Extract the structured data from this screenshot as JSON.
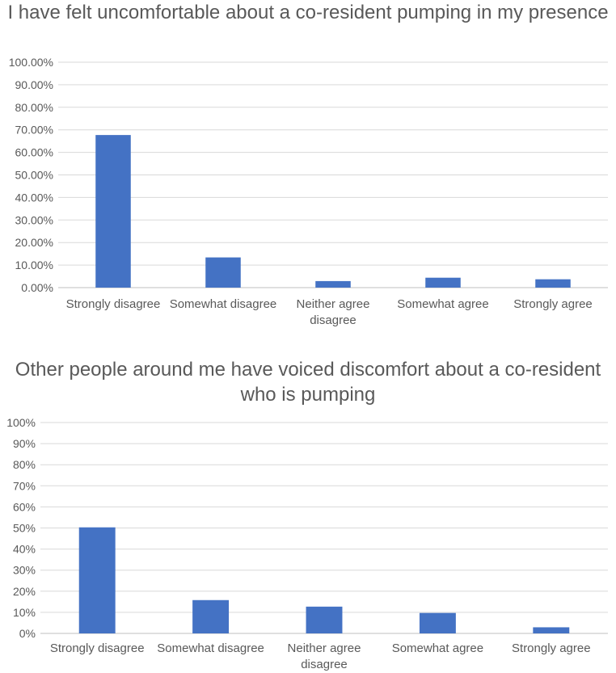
{
  "chart_data": [
    {
      "type": "bar",
      "title": "I have felt uncomfortable about a co-resident pumping in my presence",
      "categories": [
        "Strongly disagree",
        "Somewhat disagree",
        "Neither agree disagree",
        "Somewhat agree",
        "Strongly agree"
      ],
      "category_lines": [
        [
          "Strongly disagree"
        ],
        [
          "Somewhat disagree"
        ],
        [
          "Neither agree",
          "disagree"
        ],
        [
          "Somewhat agree"
        ],
        [
          "Strongly agree"
        ]
      ],
      "values": [
        67.7,
        13.4,
        2.9,
        4.4,
        3.7
      ],
      "ylim": [
        0,
        100
      ],
      "yticks": [
        "0.00%",
        "10.00%",
        "20.00%",
        "30.00%",
        "40.00%",
        "50.00%",
        "60.00%",
        "70.00%",
        "80.00%",
        "90.00%",
        "100.00%"
      ],
      "xlabel": "",
      "ylabel": "",
      "bar_color": "#4472c4",
      "grid": true
    },
    {
      "type": "bar",
      "title": "Other people around me have voiced discomfort about a co-resident who is pumping",
      "categories": [
        "Strongly disagree",
        "Somewhat disagree",
        "Neither agree disagree",
        "Somewhat agree",
        "Strongly agree"
      ],
      "category_lines": [
        [
          "Strongly disagree"
        ],
        [
          "Somewhat disagree"
        ],
        [
          "Neither agree",
          "disagree"
        ],
        [
          "Somewhat agree"
        ],
        [
          "Strongly agree"
        ]
      ],
      "values": [
        50.3,
        15.8,
        12.7,
        9.7,
        2.9
      ],
      "ylim": [
        0,
        100
      ],
      "yticks": [
        "0%",
        "10%",
        "20%",
        "30%",
        "40%",
        "50%",
        "60%",
        "70%",
        "80%",
        "90%",
        "100%"
      ],
      "xlabel": "",
      "ylabel": "",
      "bar_color": "#4472c4",
      "grid": true
    }
  ]
}
